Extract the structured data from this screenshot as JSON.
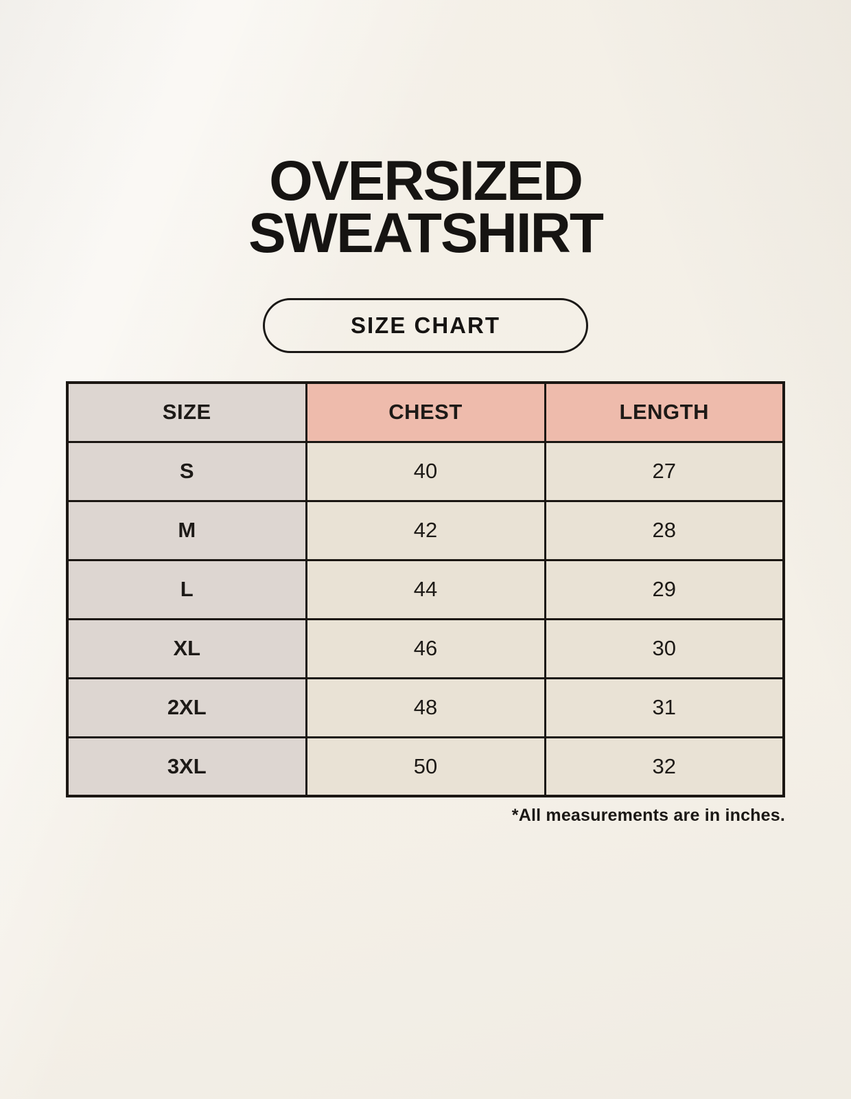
{
  "page": {
    "title_line1": "OVERSIZED",
    "title_line2": "SWEATSHIRT",
    "badge_label": "SIZE CHART",
    "footnote": "*All measurements are in inches."
  },
  "colors": {
    "background": "#f8f4ec",
    "gray_cell": "#ddd6d1",
    "accent_cell": "#eebbac",
    "cream_cell": "#e9e2d5",
    "border": "#1b1713",
    "text": "#1d1a17"
  },
  "chart_data": {
    "type": "table",
    "title": "OVERSIZED SWEATSHIRT SIZE CHART",
    "columns": [
      "SIZE",
      "CHEST",
      "LENGTH"
    ],
    "rows": [
      [
        "S",
        "40",
        "27"
      ],
      [
        "M",
        "42",
        "28"
      ],
      [
        "L",
        "44",
        "29"
      ],
      [
        "XL",
        "46",
        "30"
      ],
      [
        "2XL",
        "48",
        "31"
      ],
      [
        "3XL",
        "50",
        "32"
      ]
    ],
    "units_note": "*All measurements are in inches."
  }
}
